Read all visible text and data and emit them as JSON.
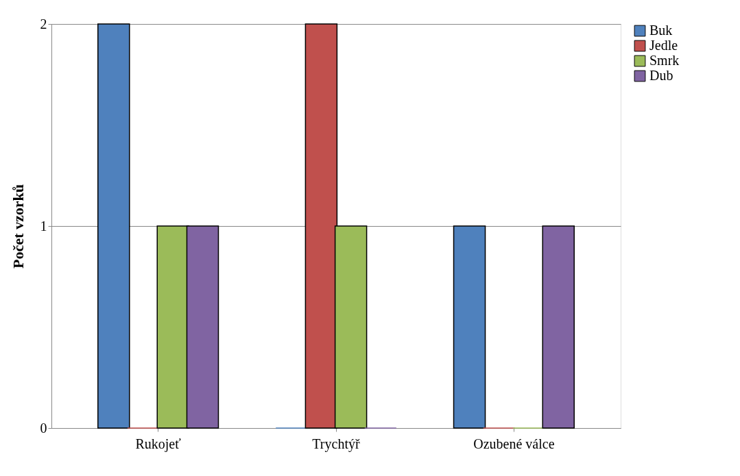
{
  "chart_data": {
    "type": "bar",
    "ylabel": "Počet vzorků",
    "categories": [
      "Rukojeť",
      "Trychtýř",
      "Ozubené válce"
    ],
    "series": [
      {
        "name": "Buk",
        "color": "#4f81bd",
        "values": [
          2,
          0,
          1
        ]
      },
      {
        "name": "Jedle",
        "color": "#c0504d",
        "values": [
          0,
          2,
          0
        ]
      },
      {
        "name": "Smrk",
        "color": "#9bbb59",
        "values": [
          1,
          1,
          0
        ]
      },
      {
        "name": "Dub",
        "color": "#8064a2",
        "values": [
          1,
          0,
          1
        ]
      }
    ],
    "ylim": [
      0,
      2
    ],
    "yticks": [
      0,
      1,
      2
    ],
    "grid": "y",
    "legend": "right"
  }
}
